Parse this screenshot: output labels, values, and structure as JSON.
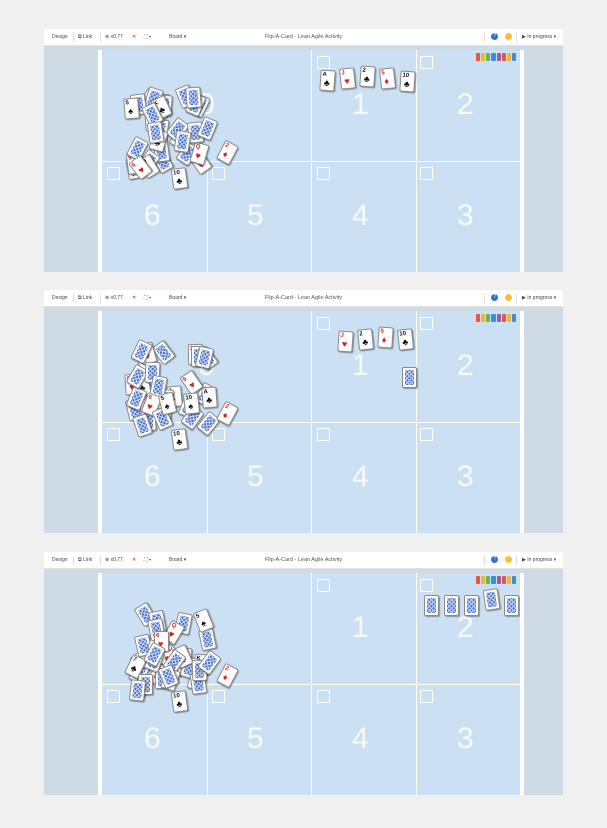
{
  "toolbar": {
    "design_label": "Design",
    "link_label": "Link",
    "zoom_label": "x0.77",
    "board_label": "Board",
    "title": "Flip-A-Card - Lean Agile Activity",
    "status_label": "In progress",
    "help_glyph": "?"
  },
  "zones": [
    "0",
    "1",
    "2",
    "3",
    "4",
    "5",
    "6"
  ],
  "colors": {
    "board": "#cce0f3",
    "frame": "#cfdbe4",
    "card_back": "#4a6fc9",
    "suit_red": "#d42020",
    "suit_black": "#111111",
    "logo": [
      "#e8563b",
      "#f2b531",
      "#5cb85c",
      "#3b8fd6",
      "#9b59b6",
      "#e8563b",
      "#f2b531",
      "#3b8fd6"
    ]
  },
  "panels": [
    {
      "zone1_cards": [
        {
          "rank": "A",
          "suit": "♣",
          "color": "black"
        },
        {
          "rank": "J",
          "suit": "♥",
          "color": "red"
        },
        {
          "rank": "2",
          "suit": "♣",
          "color": "black"
        },
        {
          "rank": "5",
          "suit": "♦",
          "color": "red"
        },
        {
          "rank": "10",
          "suit": "♣",
          "color": "black"
        }
      ],
      "zone2_backs": 0
    },
    {
      "zone1_cards": [
        {
          "rank": "J",
          "suit": "♥",
          "color": "red"
        },
        {
          "rank": "2",
          "suit": "♣",
          "color": "black"
        },
        {
          "rank": "5",
          "suit": "♦",
          "color": "red"
        },
        {
          "rank": "10",
          "suit": "♣",
          "color": "black"
        }
      ],
      "zone1_backs": 1,
      "zone2_backs": 0
    },
    {
      "zone1_cards": [],
      "zone2_backs": 5
    }
  ]
}
